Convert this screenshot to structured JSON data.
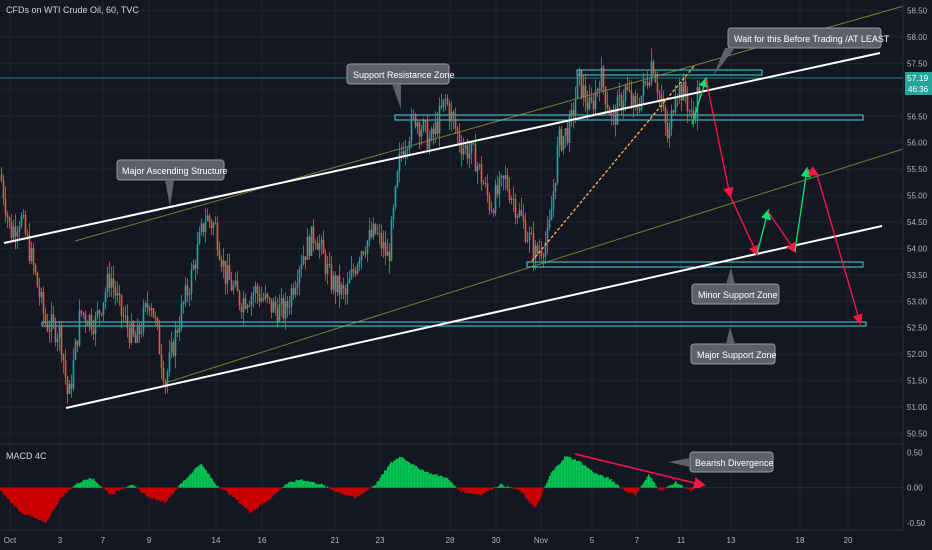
{
  "header": {
    "title": "CFDs on WTI Crude Oil, 60, TVC"
  },
  "price_axis": {
    "ticks": [
      "58.50",
      "58.00",
      "57.50",
      "57.00",
      "56.50",
      "56.00",
      "55.50",
      "55.00",
      "54.50",
      "54.00",
      "53.50",
      "53.00",
      "52.50",
      "52.00",
      "51.50",
      "51.00",
      "50.50"
    ],
    "current_price": "57.19",
    "countdown": "46:36"
  },
  "macd_axis": {
    "ticks": [
      "0.50",
      "0.00",
      "-0.50"
    ]
  },
  "time_axis": {
    "ticks": [
      "Oct",
      "3",
      "7",
      "9",
      "14",
      "16",
      "21",
      "23",
      "28",
      "30",
      "Nov",
      "5",
      "7",
      "11",
      "13",
      "18",
      "20"
    ]
  },
  "macd": {
    "label": "MACD 4C"
  },
  "annotations": {
    "support_resistance": "Support Resistance Zone",
    "major_ascending": "Major Ascending Structure",
    "wait_for_this": "Wait for this Before Trading /AT LEAST",
    "minor_support": "Minor Support Zone",
    "major_support": "Major Support Zone",
    "bearish_divergence": "Bearish Divergence"
  },
  "colors": {
    "background": "#131722",
    "up": "#26a69a",
    "down": "#ef5350",
    "zone": "#4dd0e1",
    "trendline": "#ffffff",
    "channel": "#7e7a32",
    "macd_up": "#00c853",
    "macd_down": "#d50000",
    "projection_up": "#00e676",
    "projection_down": "#ff1744",
    "fib_line": "#ffb74d"
  },
  "chart_data": {
    "type": "candlestick",
    "symbol": "WTI Crude Oil CFD",
    "interval": "60",
    "ylim": [
      50.3,
      58.7
    ],
    "path": [
      [
        0,
        55.4
      ],
      [
        10,
        54.3
      ],
      [
        20,
        54.6
      ],
      [
        30,
        53.9
      ],
      [
        45,
        52.6
      ],
      [
        60,
        52.4
      ],
      [
        68,
        51.1
      ],
      [
        80,
        52.8
      ],
      [
        95,
        52.6
      ],
      [
        110,
        53.5
      ],
      [
        120,
        52.8
      ],
      [
        135,
        52.2
      ],
      [
        150,
        53.1
      ],
      [
        165,
        51.5
      ],
      [
        178,
        52.6
      ],
      [
        190,
        53.4
      ],
      [
        205,
        54.6
      ],
      [
        215,
        54.4
      ],
      [
        225,
        53.5
      ],
      [
        240,
        53.0
      ],
      [
        255,
        53.2
      ],
      [
        270,
        52.9
      ],
      [
        285,
        52.8
      ],
      [
        300,
        53.8
      ],
      [
        315,
        54.3
      ],
      [
        330,
        53.4
      ],
      [
        345,
        53.1
      ],
      [
        360,
        54.0
      ],
      [
        375,
        54.3
      ],
      [
        388,
        53.8
      ],
      [
        400,
        55.8
      ],
      [
        415,
        56.5
      ],
      [
        430,
        56.0
      ],
      [
        445,
        56.8
      ],
      [
        460,
        56.0
      ],
      [
        475,
        55.7
      ],
      [
        490,
        54.8
      ],
      [
        505,
        55.3
      ],
      [
        520,
        54.6
      ],
      [
        535,
        53.9
      ],
      [
        548,
        54.2
      ],
      [
        558,
        56.0
      ],
      [
        570,
        56.3
      ],
      [
        578,
        57.2
      ],
      [
        590,
        56.6
      ],
      [
        600,
        57.3
      ],
      [
        612,
        56.4
      ],
      [
        625,
        57.0
      ],
      [
        635,
        56.6
      ],
      [
        645,
        57.1
      ],
      [
        652,
        57.6
      ],
      [
        660,
        56.8
      ],
      [
        668,
        56.0
      ],
      [
        675,
        57.1
      ],
      [
        685,
        56.9
      ],
      [
        692,
        56.4
      ],
      [
        700,
        57.2
      ]
    ],
    "zones": [
      {
        "name": "Support Resistance Zone (upper)",
        "from": 57.14,
        "to": 57.25
      },
      {
        "name": "Support Resistance Zone",
        "from": 56.38,
        "to": 56.48
      },
      {
        "name": "Minor Support Zone",
        "from": 53.66,
        "to": 53.76
      },
      {
        "name": "Major Support Zone",
        "from": 52.54,
        "to": 52.62
      }
    ],
    "trendlines": [
      {
        "name": "Major Ascending Structure",
        "from": [
          0,
          54.1
        ],
        "to": [
          880,
          57.7
        ]
      },
      {
        "name": "Lower ascending trendline",
        "from": [
          66,
          51.05
        ],
        "to": [
          882,
          54.5
        ]
      },
      {
        "name": "Upper channel",
        "from": [
          75,
          54.1
        ],
        "to": [
          925,
          59.0
        ]
      },
      {
        "name": "Lower channel",
        "from": [
          165,
          51.4
        ],
        "to": [
          925,
          56.2
        ]
      }
    ],
    "projection": {
      "path": [
        [
          692,
          56.35
        ],
        [
          706,
          57.2
        ],
        [
          730,
          55.0
        ],
        [
          757,
          53.9
        ],
        [
          768,
          54.7
        ],
        [
          795,
          53.95
        ],
        [
          807,
          55.5
        ],
        [
          817,
          55.4
        ],
        [
          860,
          52.6
        ]
      ],
      "direction": [
        "up",
        "down",
        "down",
        "up",
        "down",
        "up",
        "down",
        "down"
      ]
    },
    "macd": {
      "ylim": [
        -0.6,
        0.62
      ],
      "path": [
        [
          0,
          -0.05
        ],
        [
          20,
          -0.35
        ],
        [
          45,
          -0.5
        ],
        [
          60,
          -0.15
        ],
        [
          75,
          0.05
        ],
        [
          90,
          0.15
        ],
        [
          110,
          -0.1
        ],
        [
          130,
          0.05
        ],
        [
          150,
          -0.15
        ],
        [
          165,
          -0.2
        ],
        [
          180,
          0.05
        ],
        [
          200,
          0.35
        ],
        [
          215,
          0.05
        ],
        [
          230,
          -0.1
        ],
        [
          250,
          -0.35
        ],
        [
          270,
          -0.15
        ],
        [
          285,
          0.05
        ],
        [
          300,
          0.12
        ],
        [
          320,
          0.05
        ],
        [
          335,
          -0.05
        ],
        [
          355,
          -0.15
        ],
        [
          375,
          0.05
        ],
        [
          390,
          0.35
        ],
        [
          400,
          0.45
        ],
        [
          415,
          0.3
        ],
        [
          430,
          0.2
        ],
        [
          445,
          0.15
        ],
        [
          460,
          -0.05
        ],
        [
          480,
          -0.1
        ],
        [
          500,
          0.05
        ],
        [
          520,
          -0.05
        ],
        [
          535,
          -0.3
        ],
        [
          550,
          0.2
        ],
        [
          565,
          0.45
        ],
        [
          578,
          0.38
        ],
        [
          595,
          0.2
        ],
        [
          610,
          0.12
        ],
        [
          625,
          -0.05
        ],
        [
          635,
          -0.1
        ],
        [
          648,
          0.18
        ],
        [
          660,
          -0.05
        ],
        [
          675,
          0.08
        ],
        [
          690,
          -0.05
        ],
        [
          700,
          0.02
        ]
      ],
      "divergence_line": {
        "from": [
          575,
          0.48
        ],
        "to": [
          705,
          0.1
        ]
      }
    }
  }
}
